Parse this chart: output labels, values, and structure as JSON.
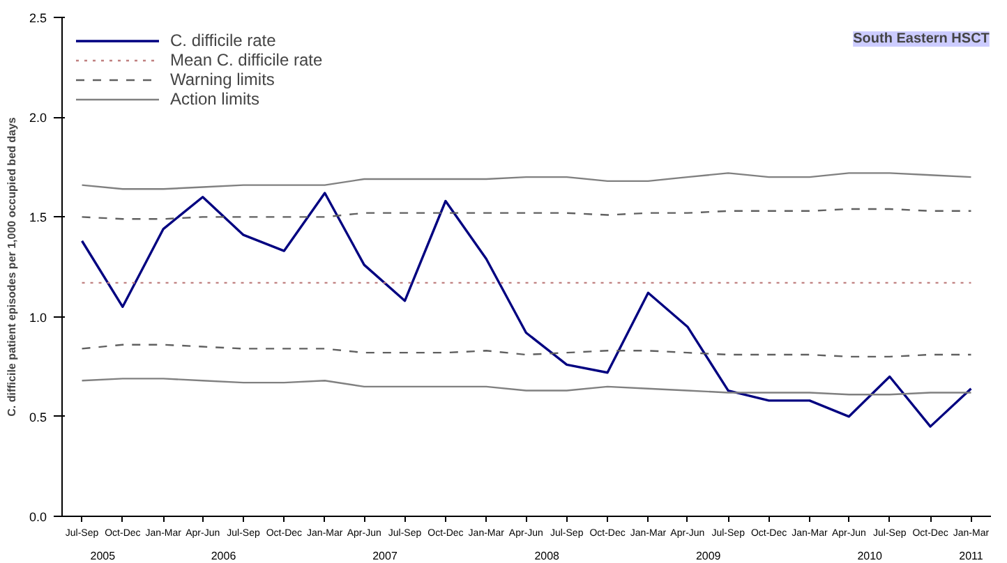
{
  "chart_data": {
    "type": "line",
    "x": [
      "2005-08-15",
      "2005-11-15",
      "2006-02-15",
      "2006-05-15",
      "2006-08-15",
      "2006-11-15",
      "2007-02-15",
      "2007-05-15",
      "2007-08-15",
      "2007-11-15",
      "2008-02-15",
      "2008-05-15",
      "2008-08-15",
      "2008-11-15",
      "2009-02-15",
      "2009-05-15",
      "2009-08-15",
      "2009-11-15",
      "2010-02-15",
      "2010-05-15",
      "2010-08-15",
      "2010-11-15",
      "2011-02-15"
    ],
    "xlim": [
      "2005-07-01",
      "2011-04-01"
    ],
    "xticks": [
      {
        "value": "2005-08-15",
        "label": "Jul-Sep"
      },
      {
        "value": "2005-11-15",
        "label": "Oct-Dec"
      },
      {
        "value": "2006-02-15",
        "label": "Jan-Mar"
      },
      {
        "value": "2006-05-15",
        "label": "Apr-Jun"
      },
      {
        "value": "2006-08-15",
        "label": "Jul-Sep"
      },
      {
        "value": "2006-11-15",
        "label": "Oct-Dec"
      },
      {
        "value": "2007-02-15",
        "label": "Jan-Mar"
      },
      {
        "value": "2007-05-15",
        "label": "Apr-Jun"
      },
      {
        "value": "2007-08-15",
        "label": "Jul-Sep"
      },
      {
        "value": "2007-11-15",
        "label": "Oct-Dec"
      },
      {
        "value": "2008-02-15",
        "label": "Jan-Mar"
      },
      {
        "value": "2008-05-15",
        "label": "Apr-Jun"
      },
      {
        "value": "2008-08-15",
        "label": "Jul-Sep"
      },
      {
        "value": "2008-11-15",
        "label": "Oct-Dec"
      },
      {
        "value": "2009-02-15",
        "label": "Jan-Mar"
      },
      {
        "value": "2009-05-15",
        "label": "Apr-Jun"
      },
      {
        "value": "2009-08-15",
        "label": "Jul-Sep"
      },
      {
        "value": "2009-11-15",
        "label": "Oct-Dec"
      },
      {
        "value": "2010-02-15",
        "label": "Jan-Mar"
      },
      {
        "value": "2010-05-15",
        "label": "Apr-Jun"
      },
      {
        "value": "2010-08-15",
        "label": "Jul-Sep"
      },
      {
        "value": "2010-11-15",
        "label": "Oct-Dec"
      },
      {
        "value": "2011-02-15",
        "label": "Jan-Mar"
      }
    ],
    "ylabel": "C. difficile patient episodes per 1,000 occupied bed days",
    "ylim": [
      0,
      2.5
    ],
    "yticks": [
      {
        "value": 0,
        "label": "0.0"
      },
      {
        "value": 0.5,
        "label": "0.5"
      },
      {
        "value": 1,
        "label": "1.0"
      },
      {
        "value": 1.5,
        "label": "1.5"
      },
      {
        "value": 2,
        "label": "2.0"
      },
      {
        "value": 2.5,
        "label": "2.5"
      }
    ],
    "grid": false,
    "legend": "top left",
    "marker": "none",
    "annotations": [
      "South Eastern HSCT"
    ],
    "x2lim": [
      "2005-07-01",
      "2011-04-01"
    ],
    "x2ticks": [
      {
        "value": "2005-10-01",
        "label": "2005"
      },
      {
        "value": "2006-07-01",
        "label": "2006"
      },
      {
        "value": "2007-07-01",
        "label": "2007"
      },
      {
        "value": "2008-07-01",
        "label": "2008"
      },
      {
        "value": "2009-07-01",
        "label": "2009"
      },
      {
        "value": "2010-07-01",
        "label": "2010"
      },
      {
        "value": "2011-02-15",
        "label": "2011"
      }
    ],
    "series": [
      {
        "name": "C. difficile rate",
        "color": "#000080",
        "line_style": "solid",
        "values": [
          1.38,
          1.05,
          1.44,
          1.6,
          1.41,
          1.33,
          1.62,
          1.26,
          1.08,
          1.58,
          1.29,
          0.92,
          0.76,
          0.72,
          1.12,
          0.95,
          0.63,
          0.58,
          0.58,
          0.5,
          0.7,
          0.45,
          0.64
        ]
      },
      {
        "name": "Mean C. difficile rate",
        "color": "#c08080",
        "line_style": "dotted",
        "values": [
          1.17,
          1.17,
          1.17,
          1.17,
          1.17,
          1.17,
          1.17,
          1.17,
          1.17,
          1.17,
          1.17,
          1.17,
          1.17,
          1.17,
          1.17,
          1.17,
          1.17,
          1.17,
          1.17,
          1.17,
          1.17,
          1.17,
          1.17
        ]
      },
      {
        "name": "Warning limits",
        "color": "#606060",
        "line_style": "dashed",
        "values": [
          1.5,
          1.49,
          1.49,
          1.5,
          1.5,
          1.5,
          1.5,
          1.52,
          1.52,
          1.52,
          1.52,
          1.52,
          1.52,
          1.51,
          1.52,
          1.52,
          1.53,
          1.53,
          1.53,
          1.54,
          1.54,
          1.53,
          1.53
        ]
      },
      {
        "color": "#606060",
        "line_style": "dashed",
        "values": [
          0.84,
          0.86,
          0.86,
          0.85,
          0.84,
          0.84,
          0.84,
          0.82,
          0.82,
          0.82,
          0.83,
          0.81,
          0.82,
          0.83,
          0.83,
          0.82,
          0.81,
          0.81,
          0.81,
          0.8,
          0.8,
          0.81,
          0.81
        ]
      },
      {
        "name": "Action limits",
        "color": "#808080",
        "line_style": "solid",
        "values": [
          1.66,
          1.64,
          1.64,
          1.65,
          1.66,
          1.66,
          1.66,
          1.69,
          1.69,
          1.69,
          1.69,
          1.7,
          1.7,
          1.68,
          1.68,
          1.7,
          1.72,
          1.7,
          1.7,
          1.72,
          1.72,
          1.71,
          1.7
        ]
      },
      {
        "color": "#808080",
        "line_style": "solid",
        "values": [
          0.68,
          0.69,
          0.69,
          0.68,
          0.67,
          0.67,
          0.68,
          0.65,
          0.65,
          0.65,
          0.65,
          0.63,
          0.63,
          0.65,
          0.64,
          0.63,
          0.62,
          0.62,
          0.62,
          0.61,
          0.61,
          0.62,
          0.62
        ]
      }
    ]
  }
}
